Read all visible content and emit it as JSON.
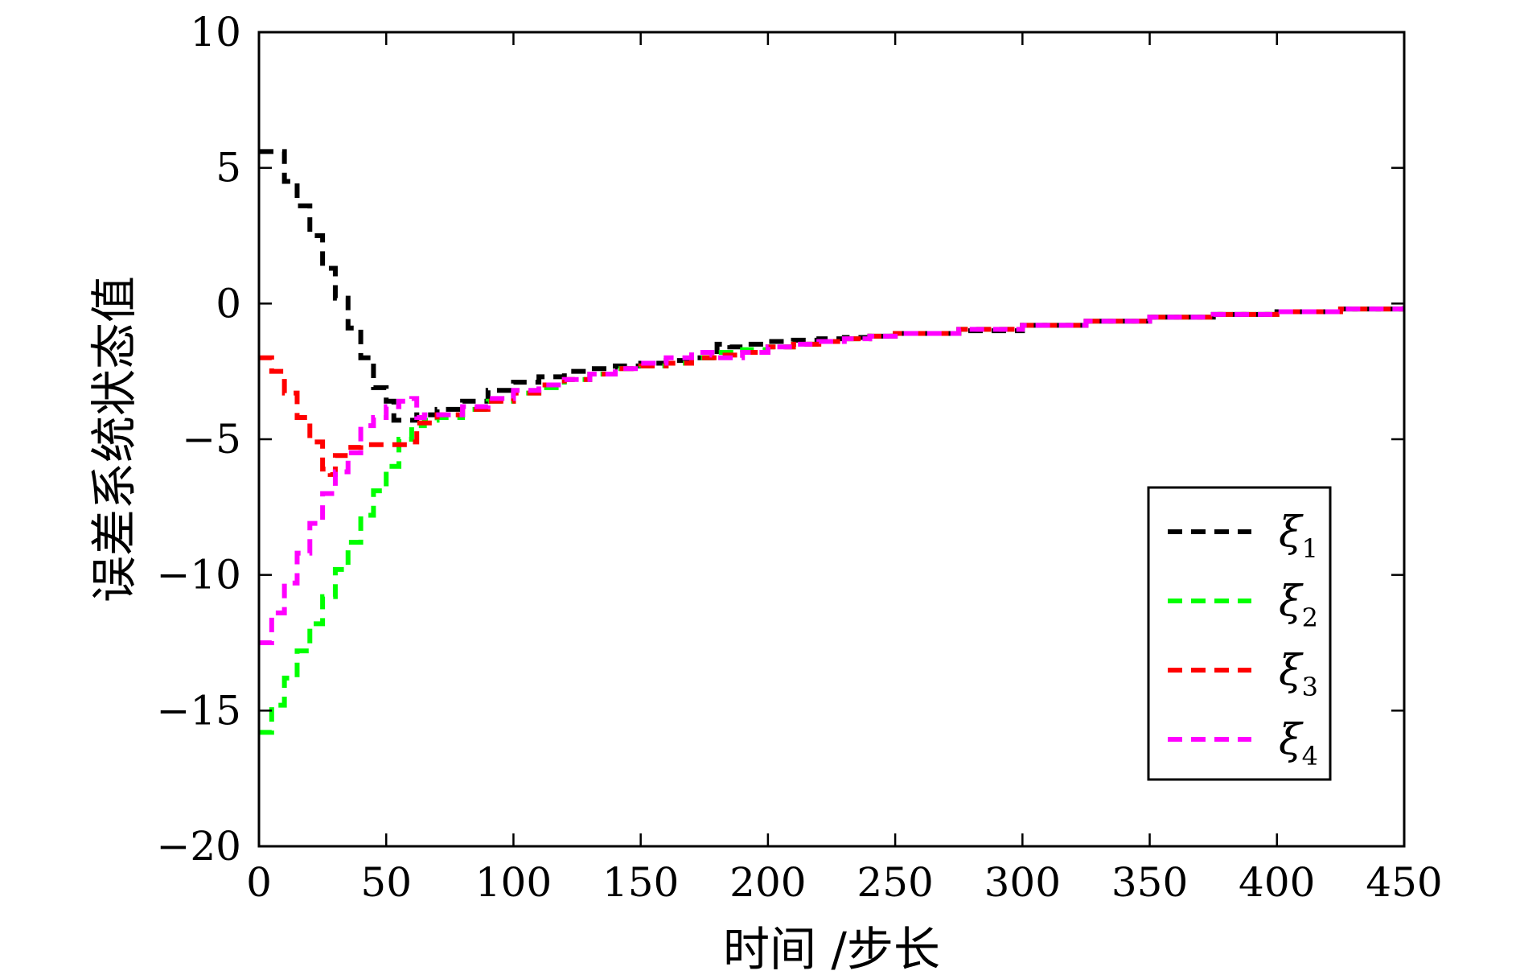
{
  "chart_data": {
    "type": "line",
    "title": "",
    "xlabel": "时间 /步长",
    "ylabel": "误差系统状态值",
    "xlim": [
      0,
      450
    ],
    "ylim": [
      -20,
      10
    ],
    "xticks": [
      0,
      50,
      100,
      150,
      200,
      250,
      300,
      350,
      400,
      450
    ],
    "yticks": [
      10,
      5,
      0,
      -5,
      -10,
      -15,
      -20
    ],
    "xtick_labels": [
      "0",
      "50",
      "100",
      "150",
      "200",
      "250",
      "300",
      "350",
      "400",
      "450"
    ],
    "ytick_labels": [
      "10",
      "5",
      "0",
      "−5",
      "−10",
      "−15",
      "−20"
    ],
    "grid": false,
    "legend_position": "lower-right",
    "line_style": "dashed",
    "series": [
      {
        "name": "ξ1",
        "label_main": "ξ",
        "label_sub": "1",
        "color": "#000000",
        "points": [
          [
            0,
            5.6
          ],
          [
            5,
            5.6
          ],
          [
            10,
            4.5
          ],
          [
            15,
            3.6
          ],
          [
            20,
            2.5
          ],
          [
            25,
            1.3
          ],
          [
            30,
            0.2
          ],
          [
            35,
            -0.9
          ],
          [
            40,
            -2.0
          ],
          [
            45,
            -3.1
          ],
          [
            50,
            -3.6
          ],
          [
            53,
            -4.3
          ],
          [
            58,
            -4.3
          ],
          [
            62,
            -4.1
          ],
          [
            70,
            -3.9
          ],
          [
            80,
            -3.6
          ],
          [
            90,
            -3.2
          ],
          [
            100,
            -2.9
          ],
          [
            110,
            -2.7
          ],
          [
            120,
            -2.5
          ],
          [
            130,
            -2.4
          ],
          [
            140,
            -2.3
          ],
          [
            150,
            -2.2
          ],
          [
            160,
            -2.1
          ],
          [
            170,
            -2.0
          ],
          [
            178,
            -1.9
          ],
          [
            180,
            -1.5
          ],
          [
            185,
            -1.6
          ],
          [
            190,
            -1.5
          ],
          [
            200,
            -1.4
          ],
          [
            210,
            -1.35
          ],
          [
            220,
            -1.3
          ],
          [
            230,
            -1.25
          ],
          [
            240,
            -1.2
          ],
          [
            250,
            -1.1
          ],
          [
            275,
            -1.0
          ],
          [
            300,
            -0.8
          ],
          [
            325,
            -0.65
          ],
          [
            350,
            -0.5
          ],
          [
            375,
            -0.4
          ],
          [
            400,
            -0.3
          ],
          [
            425,
            -0.2
          ],
          [
            450,
            -0.1
          ]
        ]
      },
      {
        "name": "ξ2",
        "label_main": "ξ",
        "label_sub": "2",
        "color": "#00ff00",
        "points": [
          [
            0,
            -15.8
          ],
          [
            5,
            -14.8
          ],
          [
            10,
            -13.8
          ],
          [
            15,
            -12.8
          ],
          [
            20,
            -11.8
          ],
          [
            25,
            -10.8
          ],
          [
            30,
            -9.8
          ],
          [
            35,
            -8.8
          ],
          [
            40,
            -7.8
          ],
          [
            45,
            -6.9
          ],
          [
            50,
            -6.0
          ],
          [
            55,
            -5.0
          ],
          [
            60,
            -4.5
          ],
          [
            65,
            -4.3
          ],
          [
            70,
            -4.2
          ],
          [
            80,
            -3.9
          ],
          [
            90,
            -3.6
          ],
          [
            100,
            -3.3
          ],
          [
            110,
            -3.1
          ],
          [
            120,
            -2.8
          ],
          [
            130,
            -2.6
          ],
          [
            140,
            -2.4
          ],
          [
            150,
            -2.3
          ],
          [
            160,
            -2.2
          ],
          [
            170,
            -2.0
          ],
          [
            180,
            -1.8
          ],
          [
            190,
            -1.7
          ],
          [
            200,
            -1.6
          ],
          [
            210,
            -1.5
          ],
          [
            220,
            -1.4
          ],
          [
            230,
            -1.3
          ],
          [
            240,
            -1.2
          ],
          [
            250,
            -1.1
          ],
          [
            275,
            -0.95
          ],
          [
            300,
            -0.8
          ],
          [
            325,
            -0.65
          ],
          [
            350,
            -0.5
          ],
          [
            375,
            -0.4
          ],
          [
            400,
            -0.3
          ],
          [
            425,
            -0.2
          ],
          [
            450,
            -0.1
          ]
        ]
      },
      {
        "name": "ξ3",
        "label_main": "ξ",
        "label_sub": "3",
        "color": "#ff0000",
        "points": [
          [
            0,
            -2.0
          ],
          [
            5,
            -2.5
          ],
          [
            10,
            -3.3
          ],
          [
            15,
            -4.2
          ],
          [
            20,
            -5.1
          ],
          [
            25,
            -6.1
          ],
          [
            28,
            -6.3
          ],
          [
            30,
            -5.6
          ],
          [
            35,
            -5.3
          ],
          [
            40,
            -5.2
          ],
          [
            50,
            -5.2
          ],
          [
            60,
            -5.1
          ],
          [
            62,
            -4.4
          ],
          [
            70,
            -4.1
          ],
          [
            80,
            -3.9
          ],
          [
            90,
            -3.6
          ],
          [
            100,
            -3.3
          ],
          [
            110,
            -3.0
          ],
          [
            120,
            -2.8
          ],
          [
            130,
            -2.6
          ],
          [
            140,
            -2.4
          ],
          [
            150,
            -2.3
          ],
          [
            160,
            -2.2
          ],
          [
            170,
            -2.0
          ],
          [
            180,
            -1.9
          ],
          [
            190,
            -1.8
          ],
          [
            200,
            -1.6
          ],
          [
            210,
            -1.5
          ],
          [
            220,
            -1.4
          ],
          [
            230,
            -1.3
          ],
          [
            240,
            -1.2
          ],
          [
            250,
            -1.1
          ],
          [
            275,
            -0.95
          ],
          [
            300,
            -0.8
          ],
          [
            325,
            -0.65
          ],
          [
            350,
            -0.5
          ],
          [
            375,
            -0.4
          ],
          [
            400,
            -0.3
          ],
          [
            425,
            -0.2
          ],
          [
            450,
            -0.1
          ]
        ]
      },
      {
        "name": "ξ4",
        "label_main": "ξ",
        "label_sub": "4",
        "color": "#ff00ff",
        "points": [
          [
            0,
            -12.5
          ],
          [
            5,
            -11.4
          ],
          [
            10,
            -10.3
          ],
          [
            15,
            -9.2
          ],
          [
            20,
            -8.1
          ],
          [
            25,
            -7.0
          ],
          [
            30,
            -6.2
          ],
          [
            35,
            -5.5
          ],
          [
            40,
            -4.5
          ],
          [
            45,
            -4.2
          ],
          [
            50,
            -3.8
          ],
          [
            55,
            -3.6
          ],
          [
            60,
            -3.5
          ],
          [
            62,
            -4.2
          ],
          [
            65,
            -4.1
          ],
          [
            70,
            -4.1
          ],
          [
            80,
            -3.8
          ],
          [
            90,
            -3.5
          ],
          [
            100,
            -3.2
          ],
          [
            110,
            -3.0
          ],
          [
            120,
            -2.8
          ],
          [
            130,
            -2.6
          ],
          [
            140,
            -2.4
          ],
          [
            150,
            -2.2
          ],
          [
            160,
            -2.0
          ],
          [
            170,
            -1.8
          ],
          [
            178,
            -1.9
          ],
          [
            180,
            -2.0
          ],
          [
            190,
            -1.8
          ],
          [
            200,
            -1.6
          ],
          [
            210,
            -1.5
          ],
          [
            220,
            -1.4
          ],
          [
            230,
            -1.3
          ],
          [
            240,
            -1.2
          ],
          [
            250,
            -1.1
          ],
          [
            275,
            -0.95
          ],
          [
            300,
            -0.8
          ],
          [
            325,
            -0.65
          ],
          [
            350,
            -0.5
          ],
          [
            375,
            -0.4
          ],
          [
            400,
            -0.3
          ],
          [
            425,
            -0.2
          ],
          [
            450,
            -0.1
          ]
        ]
      }
    ]
  }
}
